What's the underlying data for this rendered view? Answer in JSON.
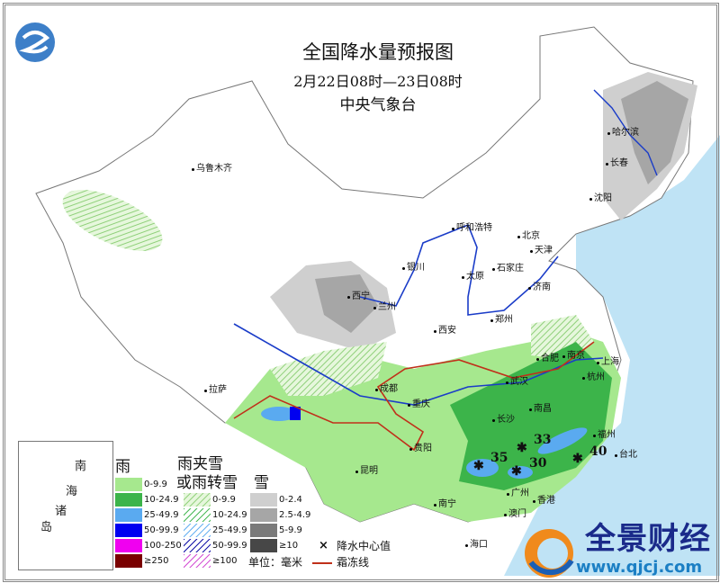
{
  "header": {
    "title": "全国降水量预报图",
    "period": "2月22日08时—23日08时",
    "issuer": "中央气象台"
  },
  "cities": [
    "乌鲁木齐",
    "哈尔滨",
    "长春",
    "沈阳",
    "呼和浩特",
    "北京",
    "天津",
    "银川",
    "太原",
    "石家庄",
    "济南",
    "西宁",
    "兰州",
    "郑州",
    "西安",
    "合肥",
    "南京",
    "上海",
    "拉萨",
    "成都",
    "武汉",
    "杭州",
    "重庆",
    "长沙",
    "南昌",
    "贵阳",
    "福州",
    "台北",
    "昆明",
    "南宁",
    "广州",
    "香港",
    "澳门",
    "海口"
  ],
  "precip_centers": [
    {
      "value": "33"
    },
    {
      "value": "35"
    },
    {
      "value": "30"
    },
    {
      "value": "40"
    }
  ],
  "inset": {
    "labels": [
      "南",
      "海",
      "诸",
      "岛"
    ]
  },
  "legend": {
    "rain": {
      "header": "雨",
      "items": [
        {
          "label": "0-9.9",
          "color": "#a6e88e"
        },
        {
          "label": "10-24.9",
          "color": "#3cb44a"
        },
        {
          "label": "25-49.9",
          "color": "#5aaaf0"
        },
        {
          "label": "50-99.9",
          "color": "#0000f0"
        },
        {
          "label": "100-250",
          "color": "#f000f0"
        },
        {
          "label": "≥250",
          "color": "#7a0000"
        }
      ]
    },
    "sleet": {
      "header_line1": "雨夹雪",
      "header_line2": "或雨转雪",
      "items": [
        {
          "label": "0-9.9",
          "color": "#a6e88e"
        },
        {
          "label": "10-24.9",
          "color": "#3cb44a"
        },
        {
          "label": "25-49.9",
          "color": "#5aaaf0"
        },
        {
          "label": "50-99.9",
          "color": "#0000a0"
        },
        {
          "label": "≥100",
          "color": "#d040d0"
        }
      ]
    },
    "snow": {
      "header": "雪",
      "items": [
        {
          "label": "0-2.4",
          "color": "#cfcfcf"
        },
        {
          "label": "2.5-4.9",
          "color": "#a6a6a6"
        },
        {
          "label": "5-9.9",
          "color": "#7a7a7a"
        },
        {
          "label": "≥10",
          "color": "#474747"
        }
      ]
    },
    "center_label": "降水中心值",
    "center_symbol": "×",
    "unit": "单位：毫米",
    "freeze_line": "霜冻线",
    "freeze_color": "#c0301a"
  },
  "watermark": {
    "name": "全景财经",
    "url": "www.qjcj.com"
  }
}
